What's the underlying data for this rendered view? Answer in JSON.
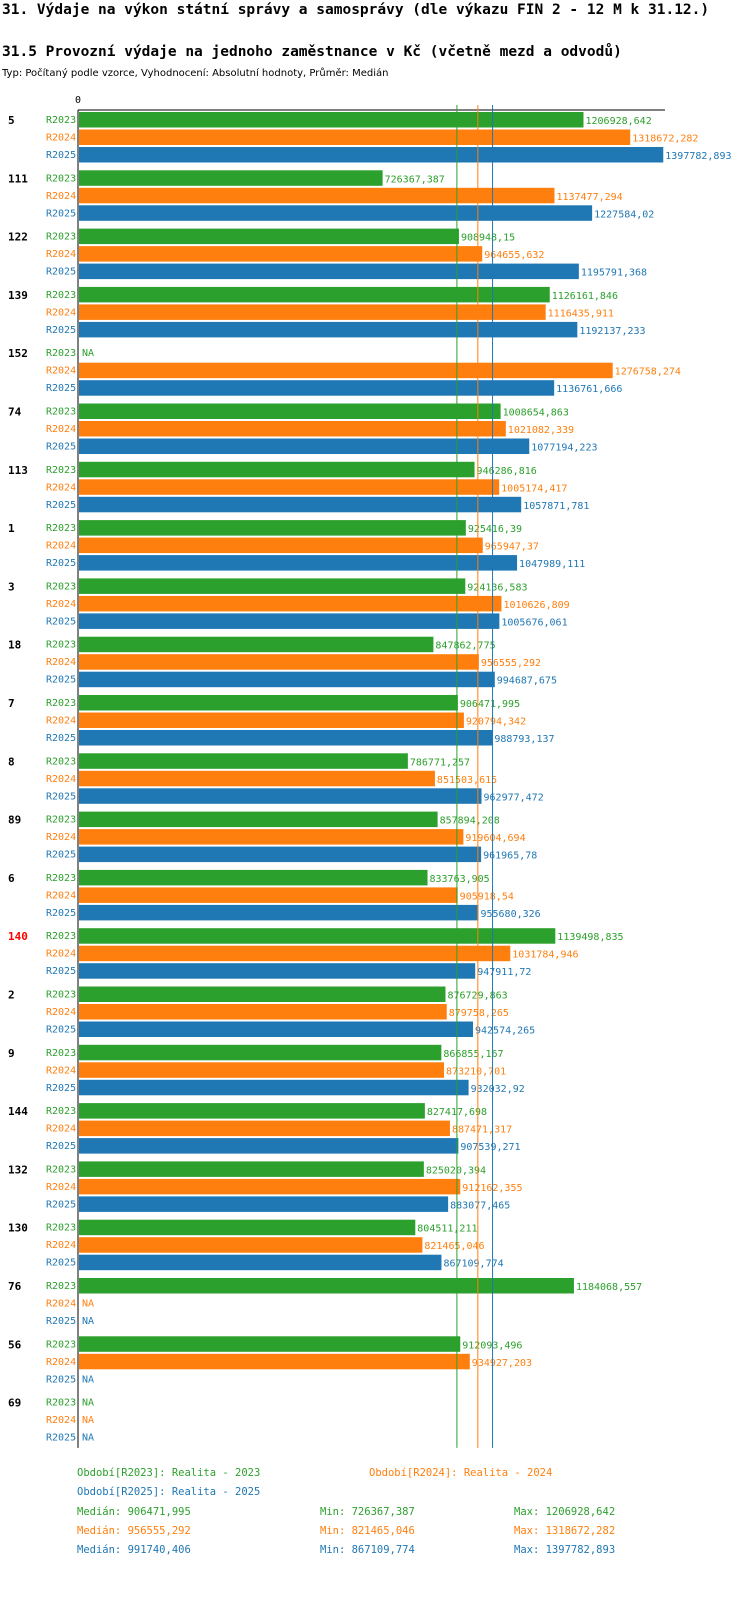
{
  "header": {
    "title": "31. Výdaje na výkon státní správy a samosprávy (dle výkazu FIN 2 - 12 M k 31.12.)",
    "subtitle": "31.5 Provozní výdaje na jednoho zaměstnance v Kč (včetně mezd a odvodů)",
    "info": "Typ: Počítaný podle vzorce, Vyhodnocení: Absolutní hodnoty, Průměr: Medián"
  },
  "colors": {
    "R2023": "#2ca02c",
    "R2024": "#ff7f0e",
    "R2025": "#1f77b4",
    "highlight": "#ff0000",
    "axis": "#000000"
  },
  "chart_data": {
    "type": "bar",
    "orientation": "horizontal",
    "axis_zero_label": "0",
    "xlim": [
      0,
      1400000
    ],
    "na_label": "NA",
    "series_names": [
      "R2023",
      "R2024",
      "R2025"
    ],
    "categories": [
      {
        "id": "5",
        "values": [
          1206928.642,
          1318672.282,
          1397782.893
        ],
        "labels": [
          "1206928,642",
          "1318672,282",
          "1397782,893"
        ]
      },
      {
        "id": "111",
        "values": [
          726367.387,
          1137477.294,
          1227584.02
        ],
        "labels": [
          "726367,387",
          "1137477,294",
          "1227584,02"
        ]
      },
      {
        "id": "122",
        "values": [
          908948.15,
          964655.632,
          1195791.368
        ],
        "labels": [
          "908948,15",
          "964655,632",
          "1195791,368"
        ]
      },
      {
        "id": "139",
        "values": [
          1126161.846,
          1116435.911,
          1192137.233
        ],
        "labels": [
          "1126161,846",
          "1116435,911",
          "1192137,233"
        ]
      },
      {
        "id": "152",
        "values": [
          null,
          1276758.274,
          1136761.666
        ],
        "labels": [
          null,
          "1276758,274",
          "1136761,666"
        ]
      },
      {
        "id": "74",
        "values": [
          1008654.863,
          1021082.339,
          1077194.223
        ],
        "labels": [
          "1008654,863",
          "1021082,339",
          "1077194,223"
        ]
      },
      {
        "id": "113",
        "values": [
          946286.816,
          1005174.417,
          1057871.781
        ],
        "labels": [
          "946286,816",
          "1005174,417",
          "1057871,781"
        ]
      },
      {
        "id": "1",
        "values": [
          925416.39,
          965947.37,
          1047989.111
        ],
        "labels": [
          "925416,39",
          "965947,37",
          "1047989,111"
        ]
      },
      {
        "id": "3",
        "values": [
          924136.583,
          1010626.809,
          1005676.061
        ],
        "labels": [
          "924136,583",
          "1010626,809",
          "1005676,061"
        ]
      },
      {
        "id": "18",
        "values": [
          847862.775,
          956555.292,
          994687.675
        ],
        "labels": [
          "847862,775",
          "956555,292",
          "994687,675"
        ]
      },
      {
        "id": "7",
        "values": [
          906471.995,
          920794.342,
          988793.137
        ],
        "labels": [
          "906471,995",
          "920794,342",
          "988793,137"
        ]
      },
      {
        "id": "8",
        "values": [
          786771.257,
          851503.615,
          962977.472
        ],
        "labels": [
          "786771,257",
          "851503,615",
          "962977,472"
        ]
      },
      {
        "id": "89",
        "values": [
          857894.208,
          919604.694,
          961965.78
        ],
        "labels": [
          "857894,208",
          "919604,694",
          "961965,78"
        ]
      },
      {
        "id": "6",
        "values": [
          833763.905,
          905918.54,
          955680.326
        ],
        "labels": [
          "833763,905",
          "905918,54",
          "955680,326"
        ]
      },
      {
        "id": "140",
        "highlight": true,
        "values": [
          1139498.835,
          1031784.946,
          947911.72
        ],
        "labels": [
          "1139498,835",
          "1031784,946",
          "947911,72"
        ]
      },
      {
        "id": "2",
        "values": [
          876729.863,
          879758.265,
          942574.265
        ],
        "labels": [
          "876729,863",
          "879758,265",
          "942574,265"
        ]
      },
      {
        "id": "9",
        "values": [
          866855.167,
          873210.701,
          932032.92
        ],
        "labels": [
          "866855,167",
          "873210,701",
          "932032,92"
        ]
      },
      {
        "id": "144",
        "values": [
          827417.698,
          887471.317,
          907539.271
        ],
        "labels": [
          "827417,698",
          "887471,317",
          "907539,271"
        ]
      },
      {
        "id": "132",
        "values": [
          825020.394,
          912162.355,
          883077.465
        ],
        "labels": [
          "825020,394",
          "912162,355",
          "883077,465"
        ]
      },
      {
        "id": "130",
        "values": [
          804511.211,
          821465.046,
          867109.774
        ],
        "labels": [
          "804511,211",
          "821465,046",
          "867109,774"
        ]
      },
      {
        "id": "76",
        "values": [
          1184068.557,
          null,
          null
        ],
        "labels": [
          "1184068,557",
          null,
          null
        ]
      },
      {
        "id": "56",
        "values": [
          912093.496,
          934927.203,
          null
        ],
        "labels": [
          "912093,496",
          "934927,203",
          null
        ]
      },
      {
        "id": "69",
        "values": [
          null,
          null,
          null
        ],
        "labels": [
          null,
          null,
          null
        ]
      }
    ],
    "medians": [
      906471.995,
      956555.292,
      991740.406
    ]
  },
  "legend": {
    "r2023": "Období[R2023]: Realita - 2023",
    "r2024": "Období[R2024]: Realita - 2024",
    "r2025": "Období[R2025]: Realita - 2025"
  },
  "stats": [
    {
      "median": "Medián: 906471,995",
      "min": "Min: 726367,387",
      "max": "Max: 1206928,642"
    },
    {
      "median": "Medián: 956555,292",
      "min": "Min: 821465,046",
      "max": "Max: 1318672,282"
    },
    {
      "median": "Medián: 991740,406",
      "min": "Min: 867109,774",
      "max": "Max: 1397782,893"
    }
  ]
}
